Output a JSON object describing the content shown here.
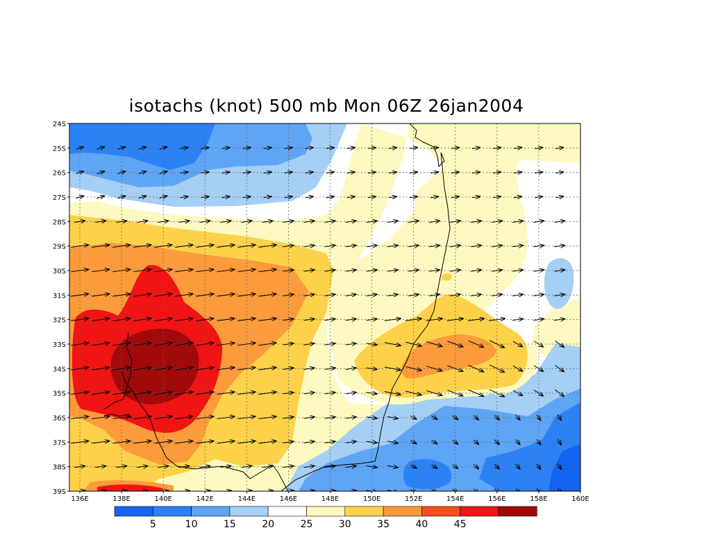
{
  "title": "isotachs (knot) 500 mb Mon 06Z 26jan2004",
  "lat_labels": [
    "24S",
    "25S",
    "26S",
    "27S",
    "28S",
    "29S",
    "30S",
    "31S",
    "32S",
    "33S",
    "34S",
    "35S",
    "36S",
    "37S",
    "38S",
    "39S"
  ],
  "lon_labels": [
    "136E",
    "138E",
    "140E",
    "142E",
    "144E",
    "146E",
    "148E",
    "150E",
    "152E",
    "154E",
    "156E",
    "158E",
    "160E"
  ],
  "colorbar": {
    "colors": [
      "#1464f0",
      "#2c82f5",
      "#5fa5f5",
      "#a5cff5",
      "#ffffff",
      "#fdf9c0",
      "#fdd24a",
      "#fc9b3c",
      "#f5501e",
      "#f01414",
      "#a00a0a"
    ],
    "labels": [
      "5",
      "10",
      "15",
      "20",
      "25",
      "30",
      "35",
      "40",
      "45"
    ]
  },
  "map": {
    "lon_range": [
      135.5,
      160
    ],
    "lat_range": [
      -39,
      -24
    ],
    "field": "isotachs (knot)",
    "level": "500 mb"
  }
}
